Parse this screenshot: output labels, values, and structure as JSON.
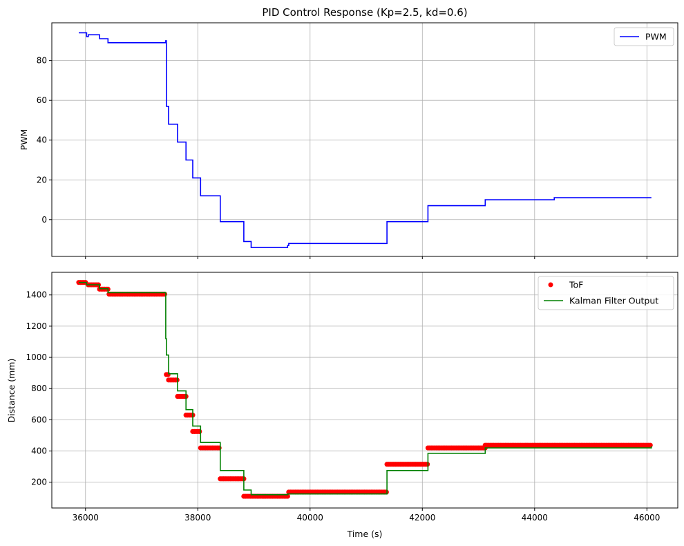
{
  "chart_data": [
    {
      "type": "line",
      "title": "PID Control Response (Kp=2.5, kd=0.6)",
      "xlabel": "",
      "ylabel": "PWM",
      "xlim": [
        35400,
        46550
      ],
      "ylim": [
        -18.5,
        99
      ],
      "xticks": [
        36000,
        38000,
        40000,
        42000,
        44000,
        46000
      ],
      "yticks": [
        0,
        20,
        40,
        60,
        80
      ],
      "grid": true,
      "legend": "top-right",
      "series": [
        {
          "name": "PWM",
          "color": "#0000ff",
          "step": true,
          "x": [
            35880,
            36020,
            36050,
            36250,
            36400,
            37420,
            37430,
            37440,
            37480,
            37640,
            37790,
            37910,
            38050,
            38400,
            38820,
            38950,
            39600,
            39620,
            41350,
            41370,
            42080,
            42100,
            43100,
            43120,
            44330,
            44350,
            46080
          ],
          "y": [
            94,
            92,
            93,
            91,
            89,
            89,
            90,
            57,
            48,
            39,
            30,
            21,
            12,
            -1,
            -11,
            -14,
            -13,
            -12,
            -12,
            -1,
            -1,
            7,
            7,
            10,
            10,
            11,
            11
          ]
        }
      ]
    },
    {
      "type": "scatter",
      "title": "",
      "xlabel": "Time (s)",
      "ylabel": "Distance (mm)",
      "xlim": [
        35400,
        46550
      ],
      "ylim": [
        35,
        1545
      ],
      "xticks": [
        36000,
        38000,
        40000,
        42000,
        44000,
        46000
      ],
      "xtick_labels": [
        "36000",
        "38000",
        "40000",
        "42000",
        "44000",
        "46000"
      ],
      "yticks": [
        200,
        400,
        600,
        800,
        1000,
        1200,
        1400
      ],
      "grid": true,
      "legend": "top-right",
      "series": [
        {
          "name": "ToF",
          "kind": "scatter",
          "color": "#ff0000",
          "segments": [
            {
              "x0": 35880,
              "x1": 36000,
              "y": 1480,
              "step": 30
            },
            {
              "x0": 36050,
              "x1": 36250,
              "y": 1465,
              "step": 30
            },
            {
              "x0": 36250,
              "x1": 36400,
              "y": 1437,
              "step": 30
            },
            {
              "x0": 36420,
              "x1": 37420,
              "y": 1405,
              "step": 30
            },
            {
              "x0": 37440,
              "x1": 37480,
              "y": 890,
              "step": 30
            },
            {
              "x0": 37480,
              "x1": 37640,
              "y": 855,
              "step": 30
            },
            {
              "x0": 37640,
              "x1": 37790,
              "y": 750,
              "step": 30
            },
            {
              "x0": 37790,
              "x1": 37910,
              "y": 630,
              "step": 30
            },
            {
              "x0": 37910,
              "x1": 38050,
              "y": 525,
              "step": 30
            },
            {
              "x0": 38050,
              "x1": 38400,
              "y": 420,
              "step": 30
            },
            {
              "x0": 38400,
              "x1": 38820,
              "y": 222,
              "step": 30
            },
            {
              "x0": 38820,
              "x1": 39600,
              "y": 110,
              "step": 30
            },
            {
              "x0": 39620,
              "x1": 41370,
              "y": 137,
              "step": 30
            },
            {
              "x0": 41370,
              "x1": 42100,
              "y": 315,
              "step": 30
            },
            {
              "x0": 42100,
              "x1": 43120,
              "y": 420,
              "step": 30
            },
            {
              "x0": 43120,
              "x1": 46080,
              "y": 437,
              "step": 30
            }
          ]
        },
        {
          "name": "Kalman Filter Output",
          "kind": "line",
          "color": "#008000",
          "step": true,
          "x": [
            35880,
            36020,
            36250,
            36400,
            37420,
            37430,
            37440,
            37480,
            37640,
            37790,
            37910,
            38050,
            38400,
            38820,
            38950,
            39600,
            41370,
            42100,
            43120,
            46080
          ],
          "y": [
            1480,
            1465,
            1440,
            1415,
            1415,
            1120,
            1015,
            895,
            785,
            665,
            560,
            455,
            275,
            150,
            120,
            125,
            275,
            385,
            420,
            430
          ]
        }
      ]
    }
  ]
}
